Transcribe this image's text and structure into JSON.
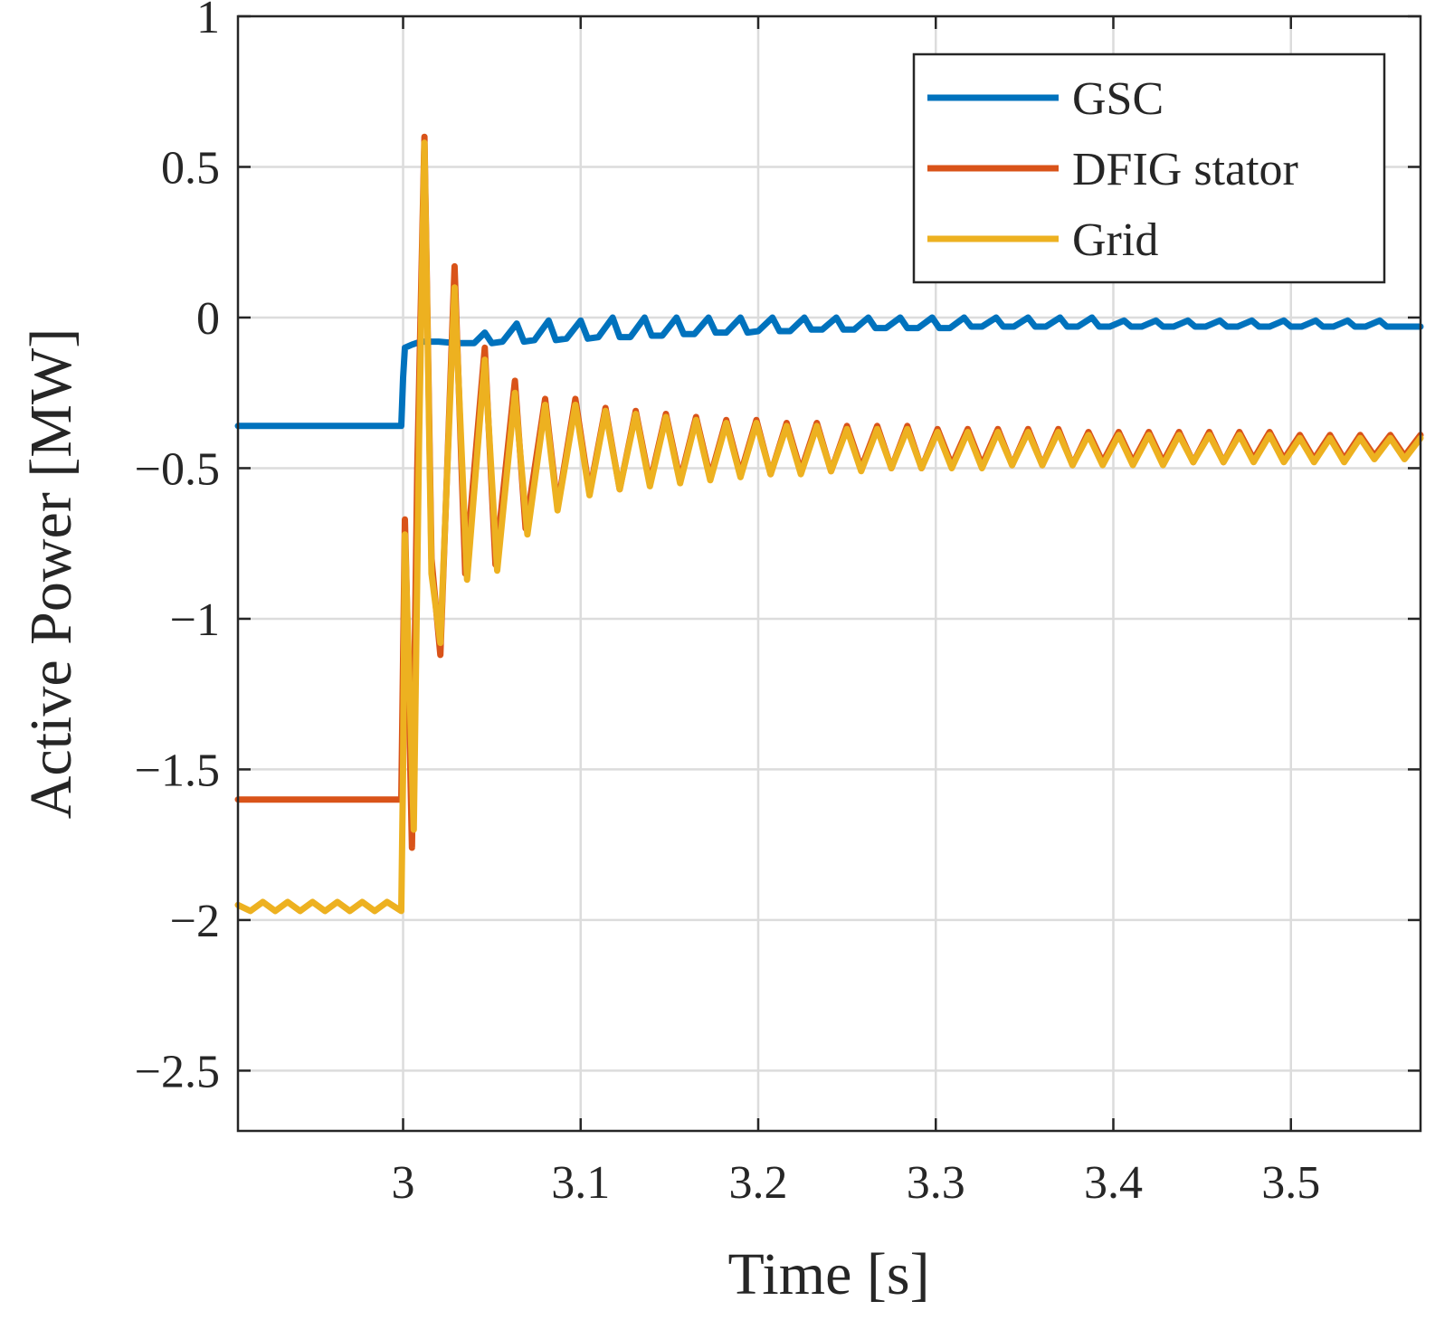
{
  "chart_data": {
    "type": "line",
    "xlabel": "Time [s]",
    "ylabel": "Active Power [MW]",
    "xlim": [
      2.907,
      3.573
    ],
    "ylim": [
      -2.7,
      1.0
    ],
    "grid": true,
    "legend_position": "top-right",
    "x_ticks": [
      {
        "value": 3.0,
        "label": "3"
      },
      {
        "value": 3.1,
        "label": "3.1"
      },
      {
        "value": 3.2,
        "label": "3.2"
      },
      {
        "value": 3.3,
        "label": "3.3"
      },
      {
        "value": 3.4,
        "label": "3.4"
      },
      {
        "value": 3.5,
        "label": "3.5"
      }
    ],
    "y_ticks": [
      {
        "value": 1.0,
        "label": "1"
      },
      {
        "value": 0.5,
        "label": "0.5"
      },
      {
        "value": 0.0,
        "label": "0"
      },
      {
        "value": -0.5,
        "label": "−0.5"
      },
      {
        "value": -1.0,
        "label": "−1"
      },
      {
        "value": -1.5,
        "label": "−1.5"
      },
      {
        "value": -2.0,
        "label": "−2"
      },
      {
        "value": -2.5,
        "label": "−2.5"
      }
    ],
    "series": [
      {
        "name": "GSC",
        "color": "#0072BD",
        "x": [
          2.907,
          2.95,
          2.999,
          3.0,
          3.001,
          3.005,
          3.01,
          3.02,
          3.03,
          3.04,
          3.046,
          3.05,
          3.056,
          3.064,
          3.068,
          3.074,
          3.082,
          3.086,
          3.092,
          3.1,
          3.104,
          3.11,
          3.118,
          3.122,
          3.128,
          3.136,
          3.14,
          3.146,
          3.154,
          3.158,
          3.164,
          3.172,
          3.176,
          3.182,
          3.19,
          3.194,
          3.2,
          3.208,
          3.212,
          3.218,
          3.226,
          3.23,
          3.236,
          3.244,
          3.248,
          3.254,
          3.262,
          3.266,
          3.272,
          3.28,
          3.284,
          3.29,
          3.298,
          3.302,
          3.308,
          3.316,
          3.32,
          3.326,
          3.334,
          3.338,
          3.344,
          3.352,
          3.356,
          3.362,
          3.37,
          3.374,
          3.38,
          3.388,
          3.392,
          3.398,
          3.406,
          3.41,
          3.416,
          3.424,
          3.428,
          3.434,
          3.442,
          3.446,
          3.452,
          3.46,
          3.464,
          3.47,
          3.478,
          3.482,
          3.488,
          3.496,
          3.5,
          3.506,
          3.514,
          3.518,
          3.524,
          3.532,
          3.536,
          3.542,
          3.55,
          3.554,
          3.56,
          3.573
        ],
        "y": [
          -0.36,
          -0.36,
          -0.36,
          -0.2,
          -0.1,
          -0.09,
          -0.08,
          -0.08,
          -0.085,
          -0.085,
          -0.05,
          -0.085,
          -0.08,
          -0.02,
          -0.08,
          -0.075,
          -0.01,
          -0.075,
          -0.07,
          -0.01,
          -0.07,
          -0.065,
          0.0,
          -0.065,
          -0.065,
          0.0,
          -0.06,
          -0.06,
          0.0,
          -0.055,
          -0.055,
          0.0,
          -0.05,
          -0.05,
          0.0,
          -0.05,
          -0.045,
          0.0,
          -0.045,
          -0.045,
          0.0,
          -0.04,
          -0.04,
          0.0,
          -0.04,
          -0.04,
          0.0,
          -0.035,
          -0.035,
          0.0,
          -0.035,
          -0.035,
          0.0,
          -0.035,
          -0.035,
          0.0,
          -0.03,
          -0.03,
          0.0,
          -0.03,
          -0.03,
          0.0,
          -0.03,
          -0.03,
          0.0,
          -0.03,
          -0.03,
          0.0,
          -0.03,
          -0.03,
          -0.01,
          -0.03,
          -0.03,
          -0.01,
          -0.03,
          -0.03,
          -0.01,
          -0.03,
          -0.03,
          -0.01,
          -0.03,
          -0.03,
          -0.01,
          -0.03,
          -0.03,
          -0.01,
          -0.03,
          -0.03,
          -0.01,
          -0.03,
          -0.03,
          -0.01,
          -0.03,
          -0.03,
          -0.01,
          -0.03,
          -0.03,
          -0.03
        ]
      },
      {
        "name": "DFIG stator",
        "color": "#D95319",
        "x": [
          2.907,
          2.95,
          2.999,
          3.001,
          3.002,
          3.005,
          3.008,
          3.012,
          3.016,
          3.021,
          3.029,
          3.035,
          3.046,
          3.052,
          3.063,
          3.069,
          3.08,
          3.087,
          3.097,
          3.105,
          3.114,
          3.122,
          3.131,
          3.139,
          3.148,
          3.156,
          3.165,
          3.173,
          3.182,
          3.19,
          3.199,
          3.207,
          3.216,
          3.224,
          3.233,
          3.241,
          3.25,
          3.258,
          3.267,
          3.275,
          3.284,
          3.292,
          3.301,
          3.309,
          3.318,
          3.326,
          3.335,
          3.343,
          3.352,
          3.36,
          3.369,
          3.377,
          3.386,
          3.394,
          3.403,
          3.411,
          3.42,
          3.428,
          3.437,
          3.445,
          3.454,
          3.462,
          3.471,
          3.479,
          3.488,
          3.496,
          3.505,
          3.513,
          3.522,
          3.53,
          3.539,
          3.547,
          3.556,
          3.564,
          3.573
        ],
        "y": [
          -1.6,
          -1.6,
          -1.6,
          -0.67,
          -0.9,
          -1.76,
          -0.5,
          0.6,
          -0.8,
          -1.12,
          0.17,
          -0.85,
          -0.1,
          -0.82,
          -0.21,
          -0.7,
          -0.27,
          -0.63,
          -0.27,
          -0.58,
          -0.3,
          -0.57,
          -0.31,
          -0.55,
          -0.32,
          -0.54,
          -0.33,
          -0.53,
          -0.34,
          -0.52,
          -0.34,
          -0.52,
          -0.35,
          -0.51,
          -0.35,
          -0.51,
          -0.36,
          -0.5,
          -0.36,
          -0.5,
          -0.36,
          -0.5,
          -0.37,
          -0.49,
          -0.37,
          -0.49,
          -0.37,
          -0.49,
          -0.37,
          -0.49,
          -0.37,
          -0.49,
          -0.38,
          -0.48,
          -0.38,
          -0.48,
          -0.38,
          -0.48,
          -0.38,
          -0.48,
          -0.38,
          -0.48,
          -0.38,
          -0.47,
          -0.38,
          -0.47,
          -0.39,
          -0.47,
          -0.39,
          -0.47,
          -0.39,
          -0.46,
          -0.39,
          -0.46,
          -0.39
        ]
      },
      {
        "name": "Grid",
        "color": "#EDB120",
        "x": [
          2.907,
          2.914,
          2.921,
          2.928,
          2.935,
          2.942,
          2.949,
          2.956,
          2.963,
          2.97,
          2.977,
          2.984,
          2.991,
          2.999,
          3.0,
          3.001,
          3.003,
          3.006,
          3.009,
          3.012,
          3.016,
          3.021,
          3.029,
          3.036,
          3.046,
          3.053,
          3.063,
          3.07,
          3.08,
          3.087,
          3.097,
          3.105,
          3.114,
          3.122,
          3.131,
          3.139,
          3.148,
          3.156,
          3.165,
          3.173,
          3.182,
          3.19,
          3.199,
          3.207,
          3.216,
          3.224,
          3.233,
          3.241,
          3.25,
          3.258,
          3.267,
          3.275,
          3.284,
          3.292,
          3.301,
          3.309,
          3.318,
          3.326,
          3.335,
          3.343,
          3.352,
          3.36,
          3.369,
          3.377,
          3.386,
          3.394,
          3.403,
          3.411,
          3.42,
          3.428,
          3.437,
          3.445,
          3.454,
          3.462,
          3.471,
          3.479,
          3.488,
          3.496,
          3.505,
          3.513,
          3.522,
          3.53,
          3.539,
          3.547,
          3.556,
          3.564,
          3.573
        ],
        "y": [
          -1.95,
          -1.97,
          -1.94,
          -1.97,
          -1.94,
          -1.97,
          -1.94,
          -1.97,
          -1.94,
          -1.97,
          -1.94,
          -1.97,
          -1.94,
          -1.97,
          -1.5,
          -0.72,
          -1.1,
          -1.7,
          -0.4,
          0.58,
          -0.85,
          -1.08,
          0.1,
          -0.87,
          -0.14,
          -0.84,
          -0.25,
          -0.72,
          -0.29,
          -0.64,
          -0.29,
          -0.59,
          -0.31,
          -0.57,
          -0.32,
          -0.56,
          -0.33,
          -0.55,
          -0.34,
          -0.54,
          -0.35,
          -0.53,
          -0.35,
          -0.52,
          -0.36,
          -0.52,
          -0.36,
          -0.51,
          -0.37,
          -0.51,
          -0.37,
          -0.5,
          -0.37,
          -0.5,
          -0.38,
          -0.5,
          -0.38,
          -0.5,
          -0.38,
          -0.49,
          -0.38,
          -0.49,
          -0.38,
          -0.49,
          -0.39,
          -0.49,
          -0.39,
          -0.49,
          -0.39,
          -0.49,
          -0.39,
          -0.48,
          -0.39,
          -0.48,
          -0.39,
          -0.48,
          -0.39,
          -0.48,
          -0.4,
          -0.48,
          -0.4,
          -0.48,
          -0.4,
          -0.47,
          -0.4,
          -0.47,
          -0.4
        ]
      }
    ]
  }
}
